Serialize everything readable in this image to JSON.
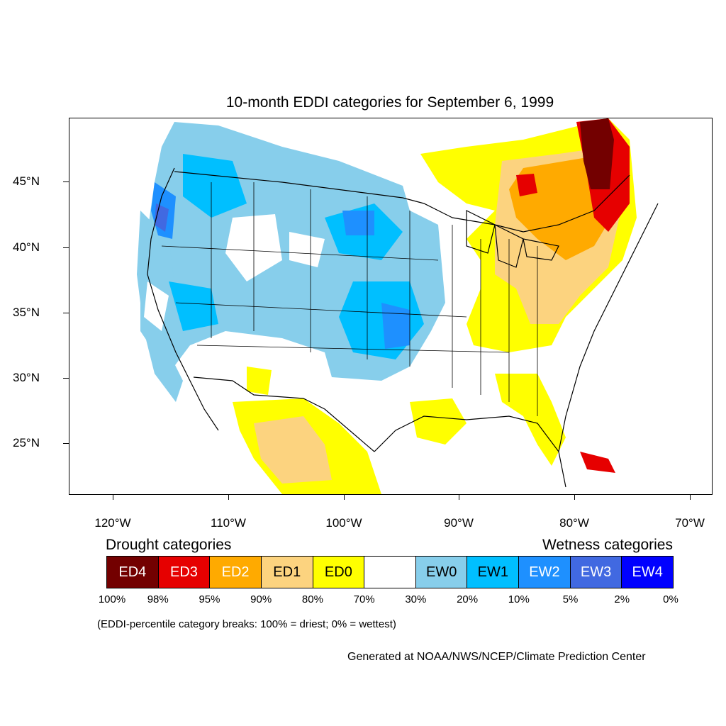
{
  "title": "10-month EDDI categories for September 6, 1999",
  "map": {
    "lat_labels": [
      "45°N",
      "40°N",
      "35°N",
      "30°N",
      "25°N"
    ],
    "lon_labels": [
      "120°W",
      "110°W",
      "100°W",
      "90°W",
      "80°W",
      "70°W"
    ]
  },
  "legend": {
    "drought_heading": "Drought categories",
    "wetness_heading": "Wetness categories",
    "categories": [
      {
        "label": "ED4",
        "color": "#730000",
        "text_color": "#ffffff"
      },
      {
        "label": "ED3",
        "color": "#e60000",
        "text_color": "#ffffff"
      },
      {
        "label": "ED2",
        "color": "#ffaa00",
        "text_color": "#ffffff"
      },
      {
        "label": "ED1",
        "color": "#fcd37f",
        "text_color": "#000000"
      },
      {
        "label": "ED0",
        "color": "#ffff00",
        "text_color": "#000000"
      },
      {
        "label": "",
        "color": "#ffffff",
        "text_color": "#000000"
      },
      {
        "label": "EW0",
        "color": "#87ceeb",
        "text_color": "#000000"
      },
      {
        "label": "EW1",
        "color": "#00bfff",
        "text_color": "#000000"
      },
      {
        "label": "EW2",
        "color": "#1e90ff",
        "text_color": "#ffffff"
      },
      {
        "label": "EW3",
        "color": "#4169e1",
        "text_color": "#ffffff"
      },
      {
        "label": "EW4",
        "color": "#0000ff",
        "text_color": "#ffffff"
      }
    ],
    "percent_breaks": [
      "100%",
      "98%",
      "95%",
      "90%",
      "80%",
      "70%",
      "30%",
      "20%",
      "10%",
      "5%",
      "2%",
      "0%"
    ]
  },
  "note": "(EDDI-percentile category breaks: 100% = driest; 0% = wettest)",
  "credit": "Generated at NOAA/NWS/NCEP/Climate Prediction Center"
}
